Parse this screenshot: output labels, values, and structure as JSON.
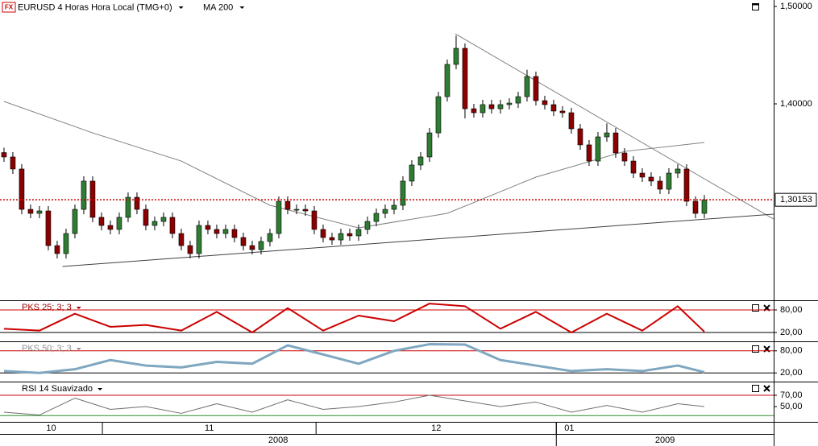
{
  "chart_data": [
    {
      "type": "candlestick",
      "title": "EURUSD 4 Horas Hora Local (TMG+0)",
      "symbol_icon": "FX",
      "up_color": "#2e7d32",
      "down_color": "#8b0000",
      "open": [
        1.35,
        1.3455,
        1.3331,
        1.2917,
        1.2876,
        1.2901,
        1.2545,
        1.2463,
        1.2669,
        1.2917,
        1.3207,
        1.2835,
        1.2752,
        1.2711,
        1.2835,
        1.3041,
        1.2917,
        1.2752,
        1.2793,
        1.2835,
        1.2669,
        1.2545,
        1.2463,
        1.2752,
        1.2711,
        1.2669,
        1.2711,
        1.2628,
        1.2545,
        1.2504,
        1.2587,
        1.2669,
        1.3,
        1.2917,
        1.2917,
        1.2901,
        1.2711,
        1.2628,
        1.2603,
        1.2669,
        1.2645,
        1.2711,
        1.2793,
        1.2876,
        1.2917,
        1.2959,
        1.3207,
        1.3372,
        1.3455,
        1.3702,
        1.4074,
        1.4405,
        1.457,
        1.395,
        1.3909,
        1.3992,
        1.395,
        1.3992,
        1.4008,
        1.4074,
        1.4281,
        1.4033,
        1.3992,
        1.3926,
        1.3909,
        1.3744,
        1.3579,
        1.3413,
        1.3661,
        1.3702,
        1.3496,
        1.3413,
        1.3289,
        1.3248,
        1.3207,
        1.3124,
        1.3289,
        1.3331,
        1.3,
        1.2876
      ],
      "high": [
        1.355,
        1.3505,
        1.3381,
        1.2967,
        1.2951,
        1.2951,
        1.2595,
        1.2719,
        1.2967,
        1.3257,
        1.3257,
        1.2885,
        1.2802,
        1.2885,
        1.3091,
        1.3091,
        1.2967,
        1.2843,
        1.2885,
        1.2885,
        1.2719,
        1.2595,
        1.2802,
        1.2802,
        1.2761,
        1.2761,
        1.2761,
        1.2678,
        1.2595,
        1.2637,
        1.2719,
        1.305,
        1.305,
        1.2967,
        1.2967,
        1.2951,
        1.2761,
        1.2678,
        1.2719,
        1.2719,
        1.2761,
        1.2843,
        1.2926,
        1.2967,
        1.3009,
        1.3257,
        1.3422,
        1.3505,
        1.3752,
        1.4124,
        1.4455,
        1.47,
        1.462,
        1.4,
        1.4042,
        1.4042,
        1.4042,
        1.4058,
        1.4124,
        1.435,
        1.4331,
        1.4083,
        1.4042,
        1.3976,
        1.3959,
        1.3794,
        1.3629,
        1.3711,
        1.38,
        1.3752,
        1.3546,
        1.3463,
        1.3339,
        1.3298,
        1.3257,
        1.3339,
        1.3381,
        1.3381,
        1.305,
        1.3065
      ],
      "low": [
        1.3405,
        1.3281,
        1.2867,
        1.2826,
        1.2826,
        1.2495,
        1.2413,
        1.2413,
        1.2619,
        1.2867,
        1.2785,
        1.2702,
        1.2661,
        1.2661,
        1.2785,
        1.2867,
        1.2702,
        1.2702,
        1.2743,
        1.2619,
        1.2495,
        1.2413,
        1.2413,
        1.2661,
        1.2619,
        1.2619,
        1.2578,
        1.2495,
        1.2454,
        1.2454,
        1.2537,
        1.2619,
        1.2867,
        1.2867,
        1.2851,
        1.2661,
        1.2578,
        1.2553,
        1.2553,
        1.2595,
        1.2595,
        1.2661,
        1.2743,
        1.2826,
        1.2867,
        1.2909,
        1.3157,
        1.3322,
        1.3405,
        1.3652,
        1.4024,
        1.4355,
        1.385,
        1.3859,
        1.3859,
        1.39,
        1.39,
        1.3942,
        1.3958,
        1.4024,
        1.3983,
        1.3942,
        1.3876,
        1.3859,
        1.3694,
        1.3529,
        1.3363,
        1.3363,
        1.3611,
        1.3446,
        1.3363,
        1.3239,
        1.3198,
        1.3157,
        1.3074,
        1.3074,
        1.3239,
        1.295,
        1.2826,
        1.2826
      ],
      "close": [
        1.3455,
        1.3331,
        1.2917,
        1.2876,
        1.2901,
        1.2545,
        1.2463,
        1.2669,
        1.2917,
        1.3207,
        1.2835,
        1.2752,
        1.2711,
        1.2835,
        1.3041,
        1.2917,
        1.2752,
        1.2793,
        1.2835,
        1.2669,
        1.2545,
        1.2463,
        1.2752,
        1.2711,
        1.2669,
        1.2711,
        1.2628,
        1.2545,
        1.2504,
        1.2587,
        1.2669,
        1.3,
        1.2917,
        1.2917,
        1.2901,
        1.2711,
        1.2628,
        1.2603,
        1.2669,
        1.2645,
        1.2711,
        1.2793,
        1.2876,
        1.2917,
        1.2959,
        1.3207,
        1.3372,
        1.3455,
        1.3702,
        1.4074,
        1.4405,
        1.457,
        1.395,
        1.3909,
        1.3992,
        1.395,
        1.3992,
        1.4008,
        1.4074,
        1.4281,
        1.4033,
        1.3992,
        1.3926,
        1.3909,
        1.3744,
        1.3579,
        1.3413,
        1.3661,
        1.3702,
        1.3496,
        1.3413,
        1.3289,
        1.3248,
        1.3207,
        1.3124,
        1.3289,
        1.3331,
        1.3,
        1.2876,
        1.3015
      ],
      "ma": {
        "name": "MA 200",
        "color": "#808080",
        "x": [
          0,
          10,
          20,
          30,
          40,
          50,
          60,
          70,
          79
        ],
        "values": [
          1.4025,
          1.3702,
          1.3413,
          1.2959,
          1.2727,
          1.2876,
          1.3248,
          1.3512,
          1.3603
        ]
      },
      "trendlines": [
        {
          "color": "#808080",
          "x": [
            50.9,
            86.8
          ],
          "values": [
            1.4719,
            1.2818
          ]
        },
        {
          "color": "#404040",
          "x": [
            6.6,
            86.8
          ],
          "values": [
            1.2331,
            1.2868
          ]
        }
      ],
      "last_price": {
        "value": 1.30153,
        "label": "1,30153",
        "color": "#cc0000"
      },
      "xlim": [
        -0.45,
        86.82
      ],
      "ylim": [
        1.1992,
        1.5066
      ],
      "yticks": [
        {
          "value": 1.5,
          "label": "1,50000"
        },
        {
          "value": 1.4,
          "label": "1,40000"
        }
      ],
      "grid": false,
      "xticks": [
        {
          "value": -0.45,
          "label": "10"
        },
        {
          "value": 11.1,
          "label": "11"
        },
        {
          "value": 35.2,
          "label": "12"
        },
        {
          "value": 62.3,
          "label": "01"
        }
      ],
      "year_ticks": [
        {
          "value": -0.45,
          "label": "2008"
        },
        {
          "value": 62.3,
          "label": "2009"
        }
      ]
    },
    {
      "type": "line",
      "title": "PKS 25; 3; 3",
      "title_color": "#990000",
      "color": "#cc0000",
      "x": [
        0,
        4,
        8,
        12,
        16,
        20,
        24,
        28,
        32,
        36,
        40,
        44,
        48,
        52,
        56,
        60,
        64,
        68,
        72,
        76,
        79
      ],
      "values": [
        30,
        25,
        70,
        35,
        40,
        25,
        75,
        20,
        85,
        25,
        65,
        50,
        97,
        90,
        30,
        75,
        20,
        70,
        25,
        90,
        22
      ],
      "ylim": [
        -3.6,
        103.6
      ],
      "yticks": [
        {
          "value": 80,
          "label": "80,00"
        },
        {
          "value": 20,
          "label": "20,00"
        }
      ],
      "grid": true,
      "grid_colors": [
        "#cc0000",
        "#000000"
      ]
    },
    {
      "type": "line",
      "title": "PKS 50; 3; 3",
      "title_color": "#909090",
      "color": "#7fa7c0",
      "x": [
        0,
        4,
        8,
        12,
        16,
        20,
        24,
        28,
        32,
        36,
        40,
        44,
        48,
        52,
        56,
        60,
        64,
        68,
        72,
        76,
        79
      ],
      "values": [
        25,
        20,
        30,
        55,
        40,
        35,
        50,
        45,
        95,
        70,
        45,
        80,
        98,
        97,
        55,
        40,
        25,
        30,
        25,
        40,
        22
      ],
      "ylim": [
        -3.6,
        103.6
      ],
      "yticks": [
        {
          "value": 80,
          "label": "80,00"
        },
        {
          "value": 20,
          "label": "20,00"
        }
      ],
      "grid": true,
      "grid_colors": [
        "#cc0000",
        "#000000"
      ]
    },
    {
      "type": "line",
      "title": "RSI 14 Suavizado",
      "title_color": "#000000",
      "color": "#707070",
      "x": [
        0,
        4,
        8,
        12,
        16,
        20,
        24,
        28,
        32,
        36,
        40,
        44,
        48,
        52,
        56,
        60,
        64,
        68,
        72,
        76,
        79
      ],
      "values": [
        40,
        35,
        65,
        45,
        50,
        38,
        55,
        40,
        62,
        45,
        50,
        58,
        70,
        60,
        50,
        58,
        40,
        52,
        40,
        55,
        50
      ],
      "ylim": [
        22.9,
        92.9
      ],
      "yticks": [
        {
          "value": 70,
          "label": "70,00"
        },
        {
          "value": 50,
          "label": "50,00"
        }
      ],
      "grid": true,
      "grid_colors": [
        "#cc0000",
        "none"
      ],
      "levels": [
        {
          "value": 34,
          "color": "#2e8b2e"
        }
      ]
    }
  ]
}
